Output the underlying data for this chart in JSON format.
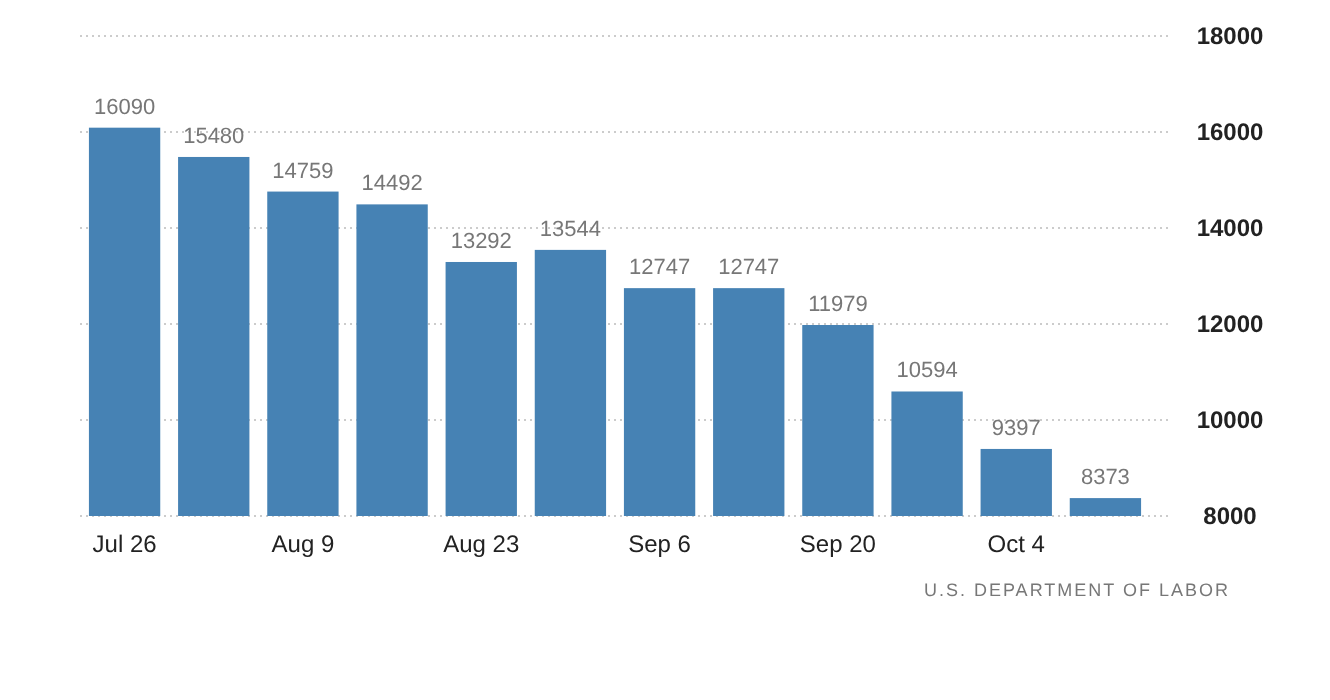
{
  "chart_data": {
    "type": "bar",
    "categories": [
      "Jul 26",
      null,
      "Aug 9",
      null,
      "Aug 23",
      null,
      "Sep 6",
      null,
      "Sep 20",
      null,
      "Oct 4",
      null
    ],
    "values": [
      16090,
      15480,
      14759,
      14492,
      13292,
      13544,
      12747,
      12747,
      11979,
      10594,
      9397,
      8373
    ],
    "color": "#4682b4",
    "ylim": [
      8000,
      18000
    ],
    "yticks": [
      8000,
      10000,
      12000,
      14000,
      16000,
      18000
    ],
    "grid": "y",
    "data_labels": true,
    "annotations": [
      "U.S. DEPARTMENT OF LABOR"
    ]
  }
}
